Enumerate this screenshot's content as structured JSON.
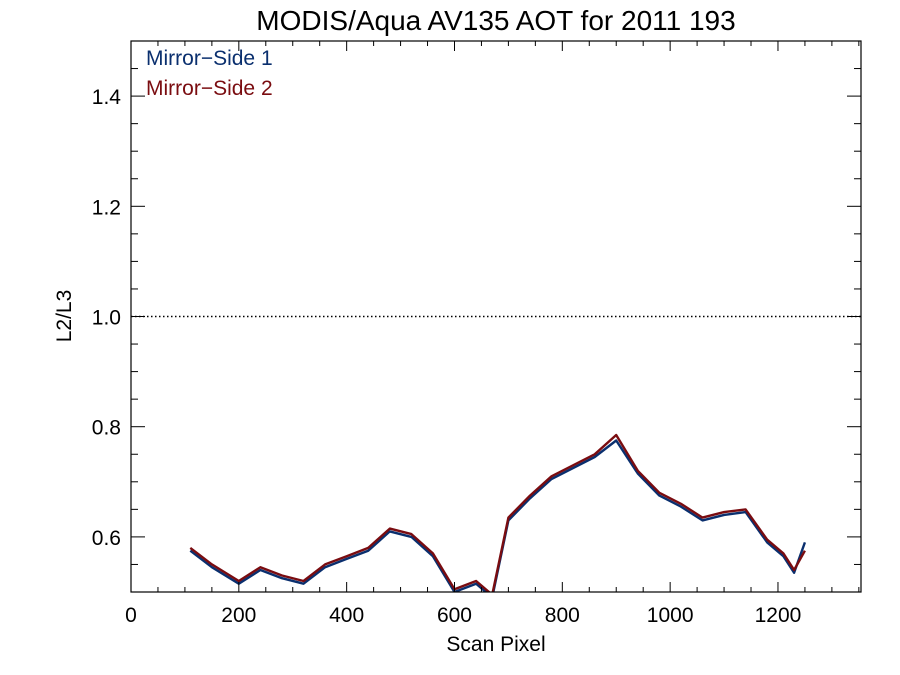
{
  "chart_data": {
    "type": "line",
    "title": "MODIS/Aqua AV135 AOT for 2011 193",
    "xlabel": "Scan Pixel",
    "ylabel": "L2/L3",
    "xlim": [
      0,
      1354
    ],
    "ylim": [
      0.5,
      1.5
    ],
    "x_ticks": [
      0,
      200,
      400,
      600,
      800,
      1000,
      1200
    ],
    "y_ticks": [
      0.6,
      0.8,
      1.0,
      1.2,
      1.4
    ],
    "x_tick_labels": [
      "0",
      "200",
      "400",
      "600",
      "800",
      "1000",
      "1200"
    ],
    "y_tick_labels": [
      "0.6",
      "0.8",
      "1.0",
      "1.2",
      "1.4"
    ],
    "reference_line": {
      "y": 1.0,
      "style": "dotted"
    },
    "legend_position": "top-left",
    "series": [
      {
        "name": "Mirror−Side 1",
        "color": "#0a2f6e",
        "x": [
          110,
          150,
          200,
          240,
          280,
          320,
          360,
          400,
          440,
          480,
          520,
          560,
          600,
          640,
          670,
          700,
          740,
          780,
          820,
          860,
          900,
          940,
          980,
          1020,
          1060,
          1100,
          1140,
          1180,
          1210,
          1230,
          1250
        ],
        "values": [
          0.575,
          0.545,
          0.515,
          0.54,
          0.525,
          0.515,
          0.545,
          0.56,
          0.575,
          0.61,
          0.6,
          0.565,
          0.5,
          0.515,
          0.49,
          0.63,
          0.67,
          0.705,
          0.725,
          0.745,
          0.775,
          0.715,
          0.675,
          0.655,
          0.63,
          0.64,
          0.645,
          0.59,
          0.565,
          0.535,
          0.59
        ]
      },
      {
        "name": "Mirror−Side 2",
        "color": "#7a0c10",
        "x": [
          110,
          150,
          200,
          240,
          280,
          320,
          360,
          400,
          440,
          480,
          520,
          560,
          600,
          640,
          670,
          700,
          740,
          780,
          820,
          860,
          900,
          940,
          980,
          1020,
          1060,
          1100,
          1140,
          1180,
          1210,
          1230,
          1250
        ],
        "values": [
          0.58,
          0.55,
          0.52,
          0.545,
          0.53,
          0.52,
          0.55,
          0.565,
          0.58,
          0.615,
          0.605,
          0.57,
          0.505,
          0.52,
          0.495,
          0.635,
          0.675,
          0.71,
          0.73,
          0.75,
          0.785,
          0.72,
          0.68,
          0.66,
          0.635,
          0.645,
          0.65,
          0.595,
          0.57,
          0.54,
          0.575
        ]
      }
    ]
  }
}
